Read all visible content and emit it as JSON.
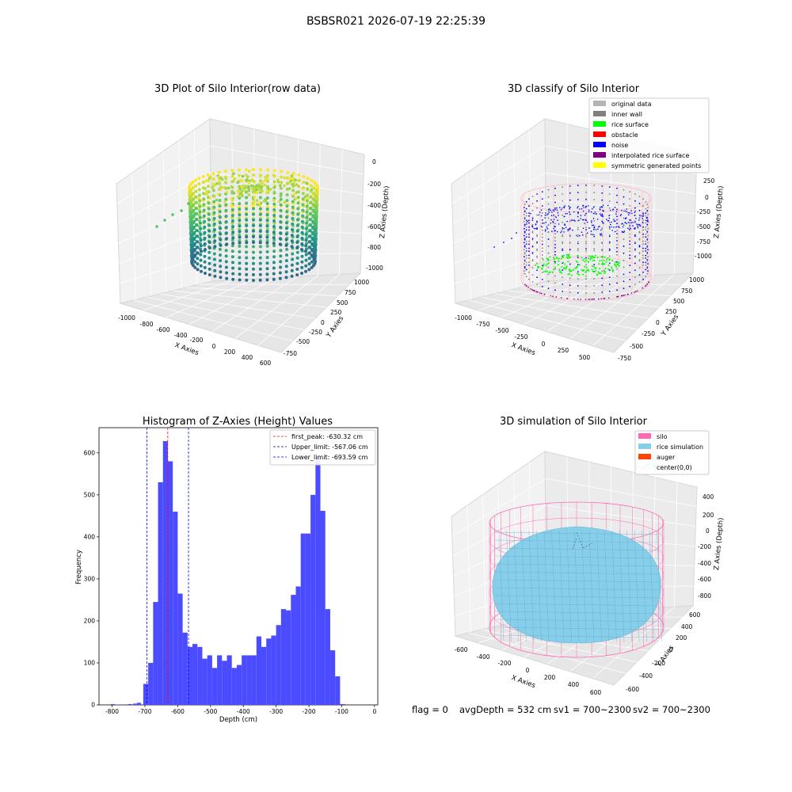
{
  "suptitle": "BSBSR021 2026-07-19 22:25:39",
  "panels": {
    "raw": {
      "title": "3D Plot of Silo Interior(row data)",
      "xlabel": "X Axies",
      "ylabel": "Y Axies",
      "zlabel": "Z Axies (Depth)",
      "xticks": [
        "-1000",
        "-800",
        "-600",
        "-400",
        "-200",
        "0",
        "200",
        "400",
        "600"
      ],
      "yticks": [
        "-750",
        "-500",
        "-250",
        "0",
        "250",
        "500",
        "750",
        "1000"
      ],
      "zticks": [
        "0",
        "-200",
        "-400",
        "-600",
        "-800",
        "-1000"
      ]
    },
    "classify": {
      "title": "3D classify of Silo Interior",
      "xlabel": "X Axies",
      "ylabel": "Y Axies",
      "zlabel": "Z Axies (Depth)",
      "xticks": [
        "-1000",
        "-750",
        "-500",
        "-250",
        "0",
        "250",
        "500"
      ],
      "yticks": [
        "-750",
        "-500",
        "-250",
        "0",
        "250",
        "500",
        "750",
        "1000"
      ],
      "zticks": [
        "250",
        "0",
        "-250",
        "-500",
        "-750",
        "-1000"
      ],
      "legend": [
        {
          "label": "original data",
          "color": "#b4b4b4"
        },
        {
          "label": "inner wall",
          "color": "#808080"
        },
        {
          "label": "rice surface",
          "color": "#00ff00"
        },
        {
          "label": "obstacle",
          "color": "#ff0000"
        },
        {
          "label": "noise",
          "color": "#0000ff"
        },
        {
          "label": "interpolated rice surface",
          "color": "#800080"
        },
        {
          "label": "symmetric generated points",
          "color": "#ffff00"
        }
      ]
    },
    "simulation": {
      "title": "3D simulation of Silo Interior",
      "xlabel": "X Axies",
      "ylabel": "Y Axies",
      "zlabel": "Z Axies (Depth)",
      "xticks": [
        "-600",
        "-400",
        "-200",
        "0",
        "200",
        "400",
        "600"
      ],
      "yticks": [
        "-600",
        "-400",
        "-200",
        "0",
        "200",
        "400",
        "600"
      ],
      "zticks": [
        "400",
        "200",
        "0",
        "-200",
        "-400",
        "-600",
        "-800"
      ],
      "legend": [
        {
          "label": "silo",
          "color": "#ff69b4"
        },
        {
          "label": "rice simulation",
          "color": "#87ceeb"
        },
        {
          "label": "auger",
          "color": "#ff4500"
        },
        {
          "label": "center(0,0)",
          "color": ""
        }
      ]
    }
  },
  "chart_data": {
    "type": "bar",
    "title": "Histogram of Z-Axies (Height) Values",
    "xlabel": "Depth (cm)",
    "ylabel": "Frequency",
    "xlim": [
      -840,
      10
    ],
    "ylim": [
      0,
      660
    ],
    "xticks": [
      -800,
      -700,
      -600,
      -500,
      -400,
      -300,
      -200,
      -100,
      0
    ],
    "yticks": [
      0,
      100,
      200,
      300,
      400,
      500,
      600
    ],
    "bin_width": 15,
    "bin_start": -705,
    "values": [
      50,
      100,
      245,
      530,
      628,
      580,
      460,
      265,
      172,
      138,
      145,
      138,
      110,
      118,
      88,
      118,
      105,
      118,
      88,
      95,
      118,
      118,
      118,
      163,
      138,
      158,
      165,
      190,
      228,
      225,
      262,
      282,
      408,
      408,
      500,
      590,
      462,
      228,
      130,
      68,
      2
    ],
    "outliers": [
      {
        "x": -798,
        "y": 2
      },
      {
        "x": -783,
        "y": 1
      },
      {
        "x": -745,
        "y": 2
      },
      {
        "x": -730,
        "y": 3
      },
      {
        "x": -718,
        "y": 5
      }
    ],
    "bar_color": "#4b4bff",
    "lines": [
      {
        "label": "first_peak: -630.32 cm",
        "value": -630.32,
        "color": "#ff0000"
      },
      {
        "label": "Upper_limit: -567.06 cm",
        "value": -567.06,
        "color": "#0000ff"
      },
      {
        "label": "Lower_limit: -693.59 cm",
        "value": -693.59,
        "color": "#0000ff"
      }
    ],
    "legend_position": "upper right"
  },
  "footer": {
    "flag": "flag = 0",
    "avg": "avgDepth = 532 cm",
    "sv1": "sv1 = 700~2300",
    "sv2": "sv2 = 700~2300"
  }
}
